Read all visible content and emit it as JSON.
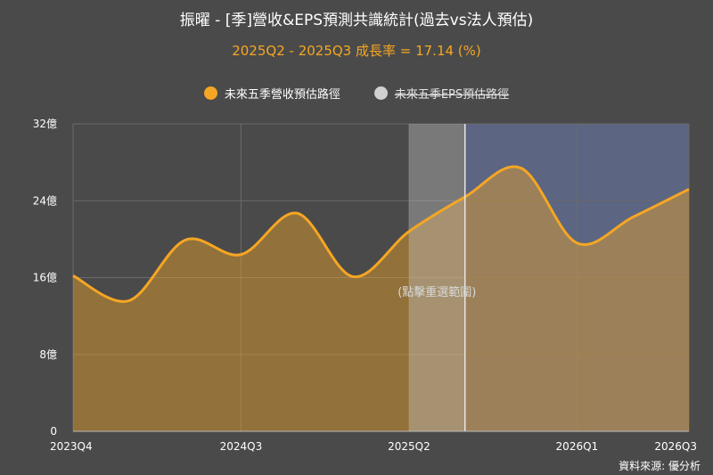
{
  "title": "振曜 - [季]營收&EPS預測共識統計(過去vs法人預估)",
  "subtitle": "2025Q2 - 2025Q3 成長率 = 17.14 (%)",
  "legend": [
    {
      "label": "未來五季營收預估路徑",
      "color": "#f5a623",
      "active": true
    },
    {
      "label": "未來五季EPS預估路徑",
      "color": "#d0d0d0",
      "active": false
    }
  ],
  "reset_zoom_label": "(點擊重選範圍)",
  "source": "資料來源: 優分析",
  "chart_data": {
    "type": "area",
    "x_tick_labels": [
      "2023Q4",
      "2024Q3",
      "2025Q2",
      "2026Q1",
      "2026Q3"
    ],
    "x_tick_positions": [
      0,
      3,
      6,
      9,
      11
    ],
    "y_ticks": [
      0,
      8,
      16,
      24,
      32
    ],
    "y_tick_labels": [
      "0",
      "8億",
      "16億",
      "24億",
      "32億"
    ],
    "ylim": [
      0,
      32
    ],
    "xlim": [
      0,
      11
    ],
    "selection_range_x": [
      6,
      7
    ],
    "forecast_range_x": [
      7,
      11
    ],
    "series": [
      {
        "name": "未來五季營收預估路徑",
        "color": "#f5a623",
        "x": [
          0,
          1,
          2,
          3,
          4,
          5,
          6,
          7,
          8,
          9,
          10,
          11
        ],
        "values": [
          16.2,
          13.6,
          19.9,
          18.4,
          22.7,
          16.1,
          20.8,
          24.4,
          27.4,
          19.6,
          22.3,
          25.2
        ]
      }
    ],
    "grid": true
  }
}
